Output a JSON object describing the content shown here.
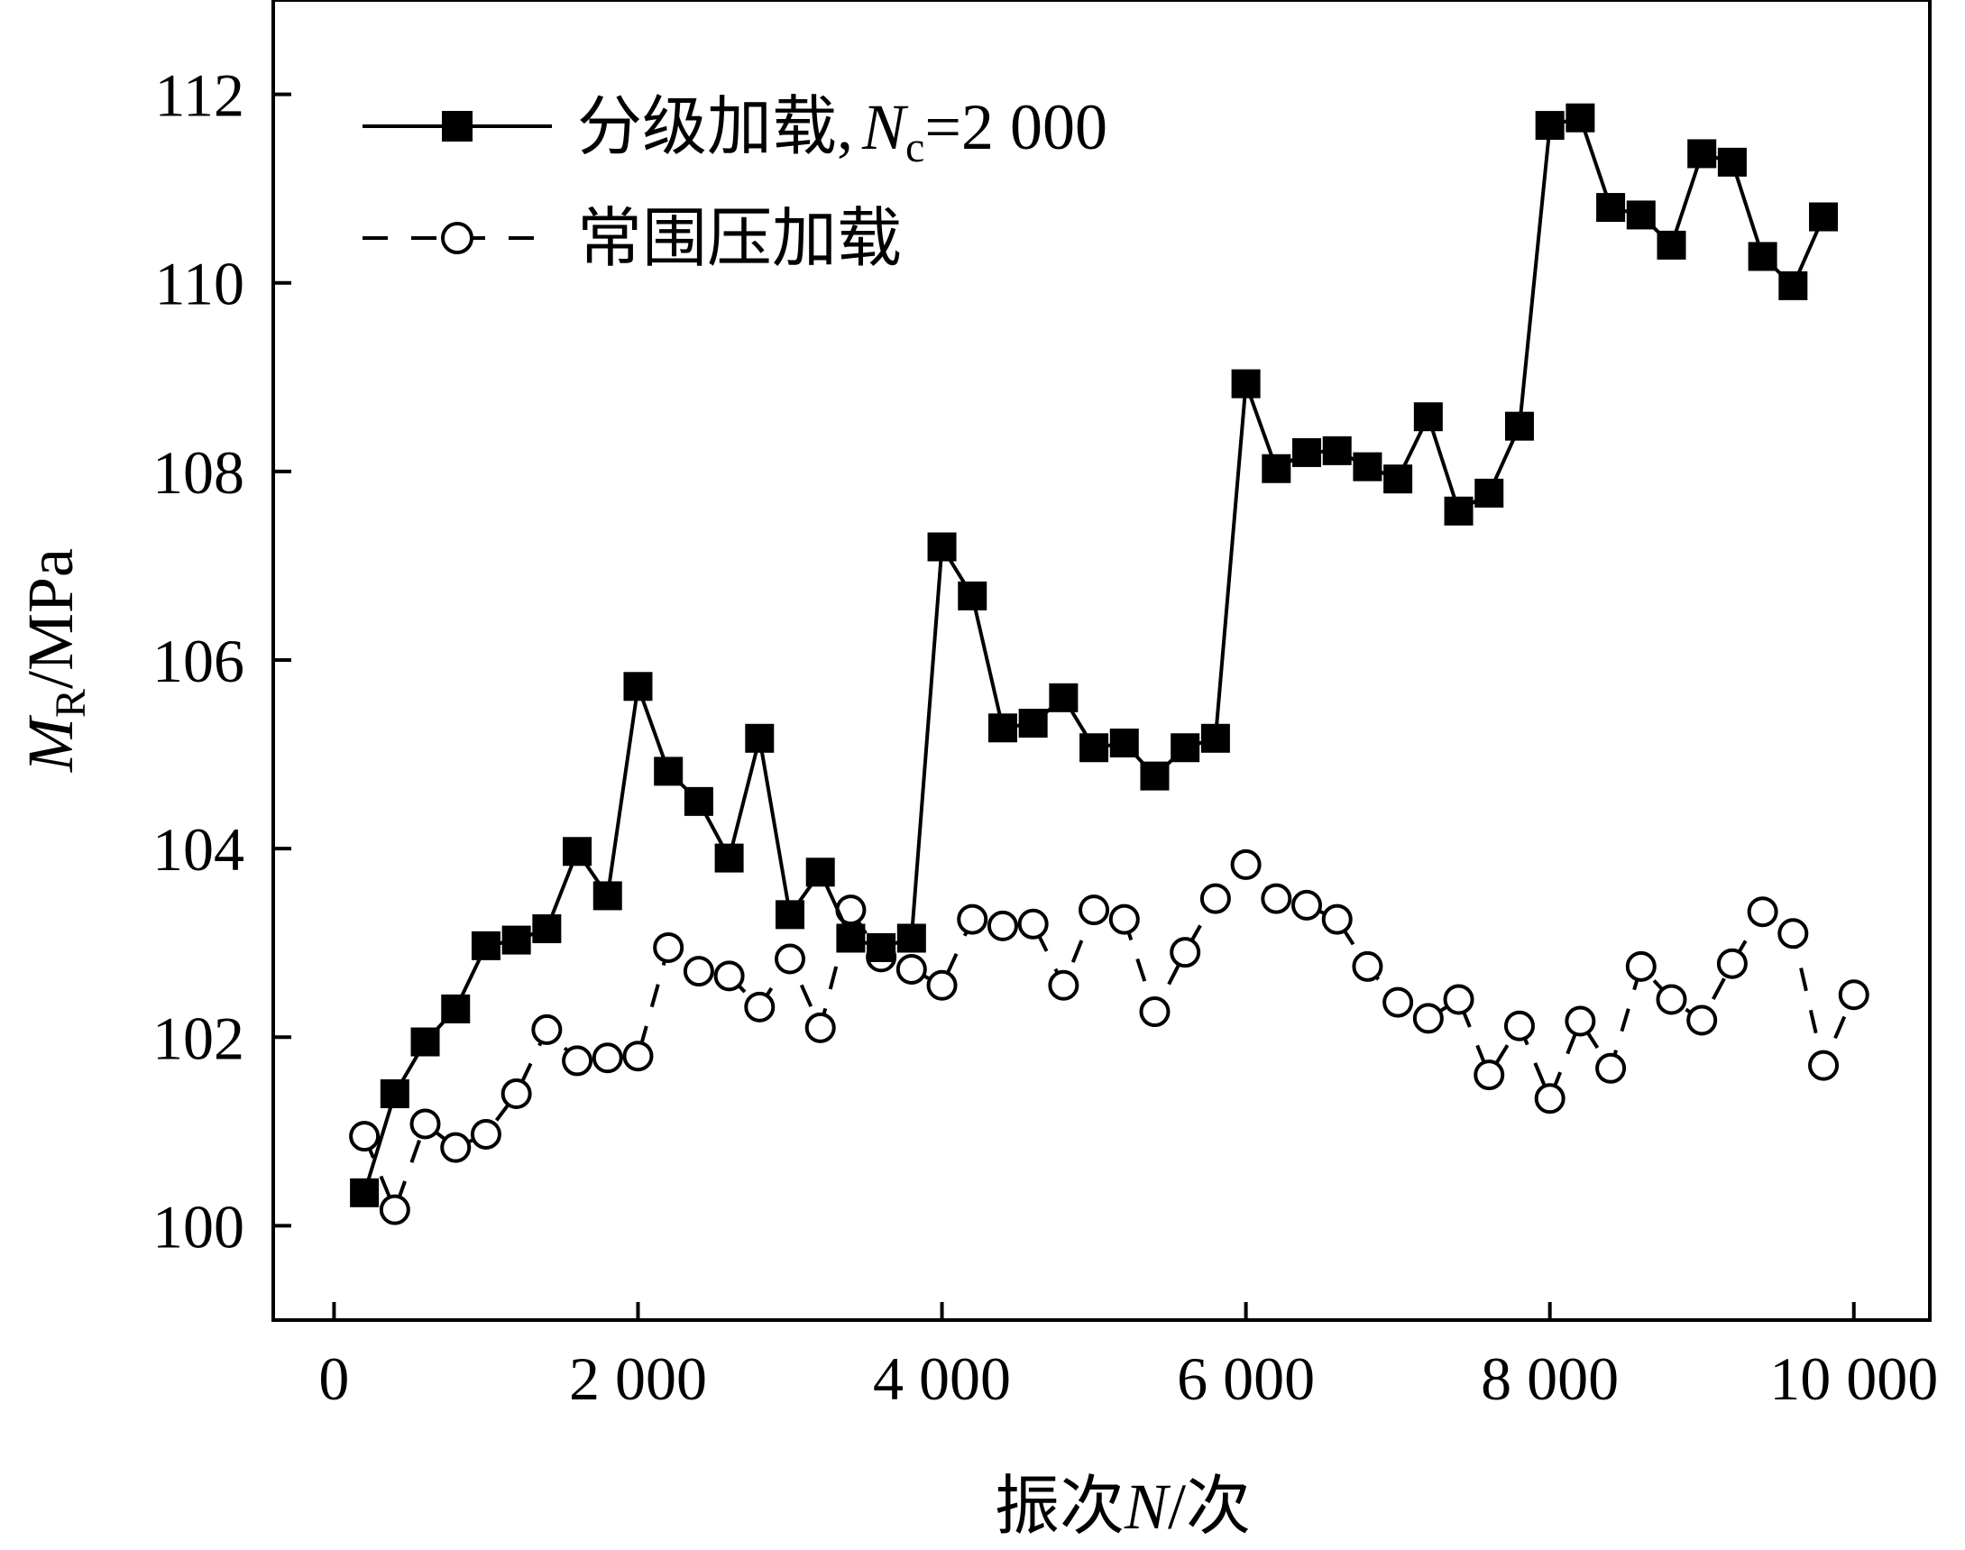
{
  "chart_data": {
    "type": "line",
    "xlabel": {
      "prefix": "振次",
      "var": "N",
      "suffix": "/次"
    },
    "ylabel": {
      "var": "M",
      "sub": "R",
      "suffix": "/MPa"
    },
    "xlim": [
      -400,
      10500
    ],
    "ylim": [
      99.0,
      113.0
    ],
    "x_ticks": [
      0,
      2000,
      4000,
      6000,
      8000,
      10000
    ],
    "x_tick_labels": [
      "0",
      "2 000",
      "4 000",
      "6 000",
      "8 000",
      "10 000"
    ],
    "y_ticks": [
      100,
      102,
      104,
      106,
      108,
      110,
      112
    ],
    "y_tick_labels": [
      "100",
      "102",
      "104",
      "106",
      "108",
      "110",
      "112"
    ],
    "grid": false,
    "legend_position": "top-left",
    "series": [
      {
        "name": "分级加载,",
        "name_extra": {
          "var": "N",
          "sub": "c",
          "rest": "=2 000"
        },
        "marker": "filled-square",
        "line": "solid",
        "color": "#000000",
        "x": [
          200,
          400,
          600,
          800,
          1000,
          1200,
          1400,
          1600,
          1800,
          2000,
          2200,
          2400,
          2600,
          2800,
          3000,
          3200,
          3400,
          3600,
          3800,
          4000,
          4200,
          4400,
          4600,
          4800,
          5000,
          5200,
          5400,
          5600,
          5800,
          6000,
          6200,
          6400,
          6600,
          6800,
          7000,
          7200,
          7400,
          7600,
          7800,
          8000,
          8200,
          8400,
          8600,
          8800,
          9000,
          9200,
          9400,
          9600,
          9800
        ],
        "y": [
          100.35,
          101.4,
          101.95,
          102.3,
          102.97,
          103.03,
          103.15,
          103.97,
          103.5,
          105.72,
          104.82,
          104.5,
          103.9,
          105.17,
          103.3,
          103.75,
          103.05,
          102.95,
          103.05,
          107.2,
          106.68,
          105.28,
          105.33,
          105.6,
          105.07,
          105.12,
          104.77,
          105.07,
          105.17,
          108.93,
          108.03,
          108.2,
          108.22,
          108.05,
          107.92,
          108.58,
          107.58,
          107.77,
          108.48,
          111.67,
          111.75,
          110.8,
          110.72,
          110.4,
          111.37,
          111.28,
          110.28,
          109.97,
          110.7
        ]
      },
      {
        "name": "常围压加载",
        "marker": "open-circle",
        "line": "dashed",
        "color": "#000000",
        "x": [
          200,
          400,
          600,
          800,
          1000,
          1200,
          1400,
          1600,
          1800,
          2000,
          2200,
          2400,
          2600,
          2800,
          3000,
          3200,
          3400,
          3600,
          3800,
          4000,
          4200,
          4400,
          4600,
          4800,
          5000,
          5200,
          5400,
          5600,
          5800,
          6000,
          6200,
          6400,
          6600,
          6800,
          7000,
          7200,
          7400,
          7600,
          7800,
          8000,
          8200,
          8400,
          8600,
          8800,
          9000,
          9200,
          9400,
          9600,
          9800,
          10000
        ],
        "y": [
          100.95,
          100.17,
          101.08,
          100.83,
          100.97,
          101.4,
          102.08,
          101.75,
          101.78,
          101.8,
          102.95,
          102.7,
          102.65,
          102.32,
          102.83,
          102.1,
          103.35,
          102.85,
          102.72,
          102.55,
          103.25,
          103.18,
          103.2,
          102.55,
          103.35,
          103.25,
          102.27,
          102.9,
          103.47,
          103.83,
          103.47,
          103.4,
          103.25,
          102.75,
          102.37,
          102.2,
          102.4,
          101.6,
          102.12,
          101.35,
          102.17,
          101.67,
          102.75,
          102.4,
          102.18,
          102.78,
          103.33,
          103.1,
          101.7,
          102.45
        ]
      }
    ]
  }
}
